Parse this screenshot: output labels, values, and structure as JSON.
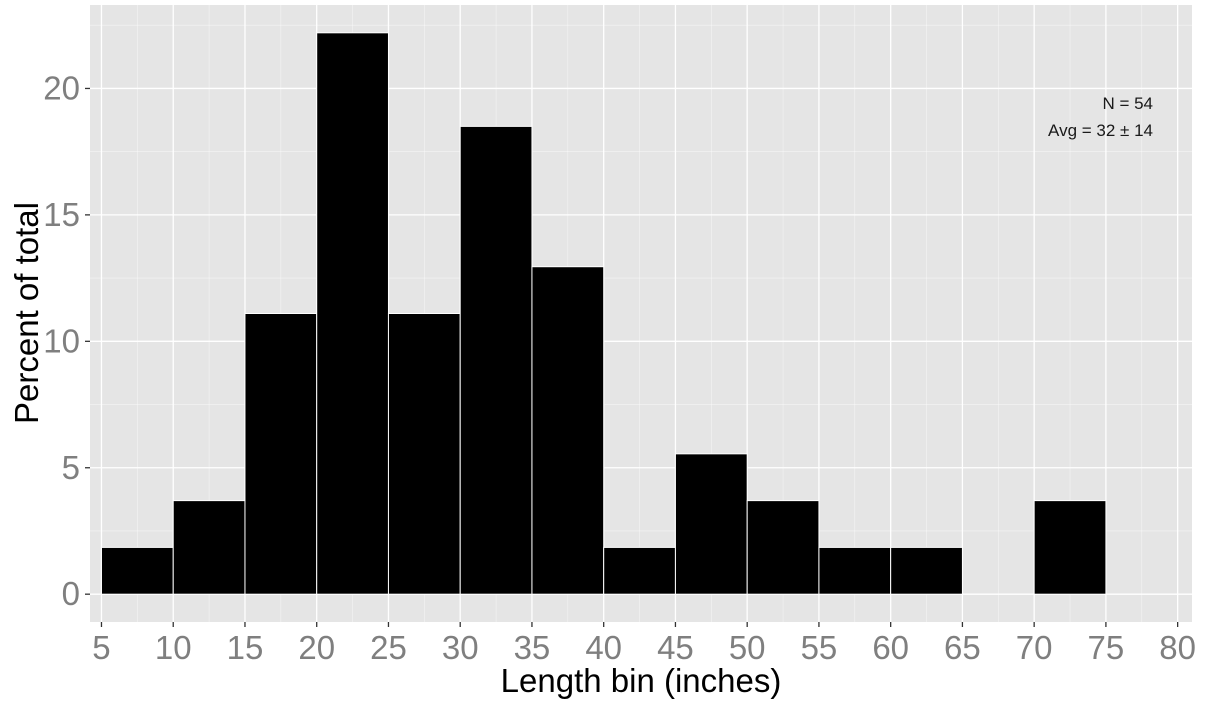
{
  "chart_data": {
    "type": "histogram",
    "bin_edges": [
      5,
      10,
      15,
      20,
      25,
      30,
      35,
      40,
      45,
      50,
      55,
      60,
      65,
      70,
      75
    ],
    "values": [
      1.85,
      3.7,
      11.1,
      22.2,
      11.1,
      18.5,
      12.95,
      1.85,
      5.55,
      3.7,
      1.85,
      1.85,
      0,
      3.7
    ],
    "xlabel": "Length bin (inches)",
    "ylabel": "Percent of total",
    "xlim": [
      4.2,
      81
    ],
    "ylim": [
      -1.1,
      23.3
    ],
    "x_ticks": [
      5,
      10,
      15,
      20,
      25,
      30,
      35,
      40,
      45,
      50,
      55,
      60,
      65,
      70,
      75,
      80
    ],
    "y_ticks": [
      0,
      5,
      10,
      15,
      20
    ],
    "grid": true,
    "annotations": [
      "N = 54",
      "Avg = 32 ± 14"
    ],
    "colors": {
      "bar_fill": "#000000",
      "bar_edge": "#ffffff",
      "panel": "#e5e5e5",
      "grid": "#ffffff",
      "tick_text": "#7f7f7f"
    }
  }
}
